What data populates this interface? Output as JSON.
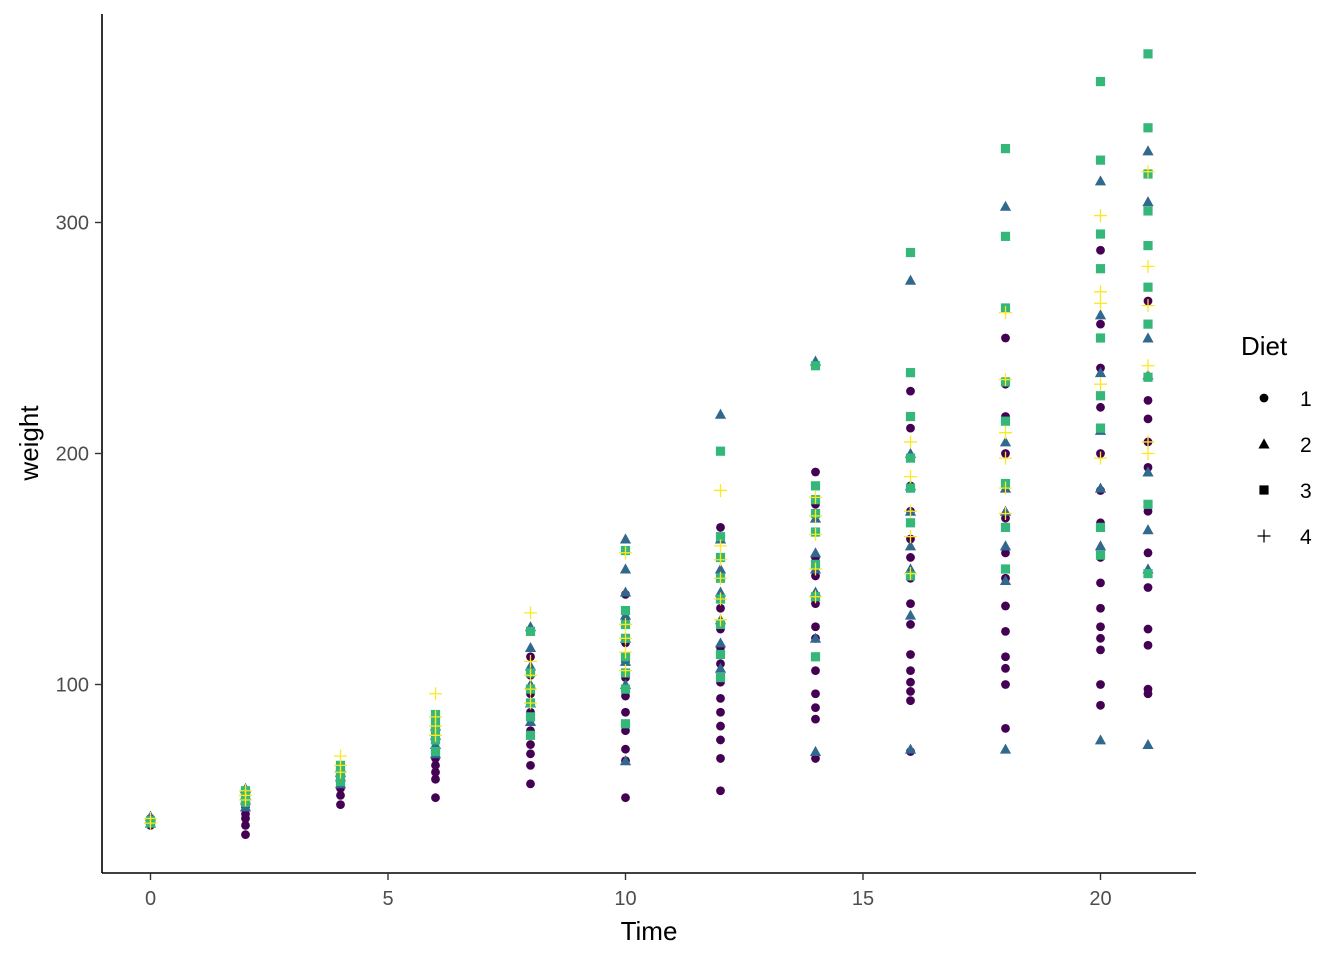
{
  "chart_data": {
    "type": "scatter",
    "title": "",
    "xlabel": "Time",
    "ylabel": "weight",
    "xlim": [
      -2,
      22
    ],
    "ylim": [
      20,
      375
    ],
    "xticks": [
      0,
      5,
      10,
      15,
      20
    ],
    "yticks": [
      100,
      200,
      300
    ],
    "grid": false,
    "legend": {
      "title": "Diet",
      "position": "right",
      "entries": [
        "1",
        "2",
        "3",
        "4"
      ]
    },
    "colors": [
      "#440154",
      "#31688E",
      "#35B779",
      "#FDE725"
    ],
    "shapes": [
      "circle",
      "triangle",
      "square",
      "plus"
    ],
    "series": [
      {
        "name": "1",
        "points": [
          [
            0,
            39
          ],
          [
            0,
            41
          ],
          [
            0,
            42
          ],
          [
            2,
            35
          ],
          [
            2,
            39
          ],
          [
            2,
            42
          ],
          [
            2,
            44
          ],
          [
            2,
            47
          ],
          [
            2,
            49
          ],
          [
            2,
            51
          ],
          [
            4,
            48
          ],
          [
            4,
            52
          ],
          [
            4,
            55
          ],
          [
            4,
            58
          ],
          [
            4,
            61
          ],
          [
            6,
            51
          ],
          [
            6,
            59
          ],
          [
            6,
            62
          ],
          [
            6,
            65
          ],
          [
            6,
            68
          ],
          [
            6,
            72
          ],
          [
            8,
            57
          ],
          [
            8,
            65
          ],
          [
            8,
            70
          ],
          [
            8,
            74
          ],
          [
            8,
            80
          ],
          [
            8,
            88
          ],
          [
            8,
            96
          ],
          [
            8,
            104
          ],
          [
            8,
            112
          ],
          [
            10,
            51
          ],
          [
            10,
            67
          ],
          [
            10,
            72
          ],
          [
            10,
            80
          ],
          [
            10,
            88
          ],
          [
            10,
            95
          ],
          [
            10,
            103
          ],
          [
            10,
            110
          ],
          [
            10,
            118
          ],
          [
            10,
            127
          ],
          [
            10,
            139
          ],
          [
            12,
            54
          ],
          [
            12,
            68
          ],
          [
            12,
            76
          ],
          [
            12,
            82
          ],
          [
            12,
            88
          ],
          [
            12,
            94
          ],
          [
            12,
            101
          ],
          [
            12,
            109
          ],
          [
            12,
            116
          ],
          [
            12,
            124
          ],
          [
            12,
            133
          ],
          [
            12,
            146
          ],
          [
            12,
            168
          ],
          [
            14,
            68
          ],
          [
            14,
            85
          ],
          [
            14,
            90
          ],
          [
            14,
            96
          ],
          [
            14,
            106
          ],
          [
            14,
            112
          ],
          [
            14,
            120
          ],
          [
            14,
            125
          ],
          [
            14,
            135
          ],
          [
            14,
            147
          ],
          [
            14,
            155
          ],
          [
            14,
            166
          ],
          [
            14,
            178
          ],
          [
            14,
            192
          ],
          [
            16,
            71
          ],
          [
            16,
            93
          ],
          [
            16,
            97
          ],
          [
            16,
            101
          ],
          [
            16,
            106
          ],
          [
            16,
            113
          ],
          [
            16,
            126
          ],
          [
            16,
            135
          ],
          [
            16,
            146
          ],
          [
            16,
            155
          ],
          [
            16,
            163
          ],
          [
            16,
            175
          ],
          [
            16,
            186
          ],
          [
            16,
            198
          ],
          [
            16,
            211
          ],
          [
            16,
            227
          ],
          [
            18,
            81
          ],
          [
            18,
            100
          ],
          [
            18,
            107
          ],
          [
            18,
            112
          ],
          [
            18,
            123
          ],
          [
            18,
            134
          ],
          [
            18,
            146
          ],
          [
            18,
            157
          ],
          [
            18,
            172
          ],
          [
            18,
            186
          ],
          [
            18,
            200
          ],
          [
            18,
            216
          ],
          [
            18,
            230
          ],
          [
            18,
            250
          ],
          [
            20,
            91
          ],
          [
            20,
            100
          ],
          [
            20,
            115
          ],
          [
            20,
            120
          ],
          [
            20,
            125
          ],
          [
            20,
            133
          ],
          [
            20,
            144
          ],
          [
            20,
            155
          ],
          [
            20,
            170
          ],
          [
            20,
            184
          ],
          [
            20,
            200
          ],
          [
            20,
            220
          ],
          [
            20,
            237
          ],
          [
            20,
            256
          ],
          [
            20,
            288
          ],
          [
            21,
            96
          ],
          [
            21,
            98
          ],
          [
            21,
            117
          ],
          [
            21,
            124
          ],
          [
            21,
            142
          ],
          [
            21,
            148
          ],
          [
            21,
            157
          ],
          [
            21,
            175
          ],
          [
            21,
            194
          ],
          [
            21,
            205
          ],
          [
            21,
            215
          ],
          [
            21,
            223
          ],
          [
            21,
            256
          ],
          [
            21,
            266
          ],
          [
            21,
            305
          ]
        ]
      },
      {
        "name": "2",
        "points": [
          [
            0,
            40
          ],
          [
            0,
            42
          ],
          [
            0,
            43
          ],
          [
            2,
            47
          ],
          [
            2,
            50
          ],
          [
            2,
            52
          ],
          [
            2,
            55
          ],
          [
            4,
            57
          ],
          [
            4,
            60
          ],
          [
            4,
            62
          ],
          [
            4,
            64
          ],
          [
            6,
            70
          ],
          [
            6,
            74
          ],
          [
            6,
            78
          ],
          [
            6,
            82
          ],
          [
            8,
            84
          ],
          [
            8,
            92
          ],
          [
            8,
            100
          ],
          [
            8,
            108
          ],
          [
            8,
            116
          ],
          [
            8,
            125
          ],
          [
            10,
            67
          ],
          [
            10,
            100
          ],
          [
            10,
            110
          ],
          [
            10,
            120
          ],
          [
            10,
            130
          ],
          [
            10,
            140
          ],
          [
            10,
            150
          ],
          [
            10,
            163
          ],
          [
            12,
            107
          ],
          [
            12,
            118
          ],
          [
            12,
            128
          ],
          [
            12,
            140
          ],
          [
            12,
            150
          ],
          [
            12,
            163
          ],
          [
            12,
            217
          ],
          [
            14,
            71
          ],
          [
            14,
            120
          ],
          [
            14,
            140
          ],
          [
            14,
            150
          ],
          [
            14,
            157
          ],
          [
            14,
            172
          ],
          [
            14,
            240
          ],
          [
            16,
            72
          ],
          [
            16,
            130
          ],
          [
            16,
            150
          ],
          [
            16,
            160
          ],
          [
            16,
            175
          ],
          [
            16,
            186
          ],
          [
            16,
            200
          ],
          [
            16,
            275
          ],
          [
            18,
            72
          ],
          [
            18,
            145
          ],
          [
            18,
            160
          ],
          [
            18,
            175
          ],
          [
            18,
            185
          ],
          [
            18,
            205
          ],
          [
            18,
            307
          ],
          [
            20,
            76
          ],
          [
            20,
            160
          ],
          [
            20,
            185
          ],
          [
            20,
            210
          ],
          [
            20,
            235
          ],
          [
            20,
            260
          ],
          [
            20,
            318
          ],
          [
            21,
            74
          ],
          [
            21,
            150
          ],
          [
            21,
            167
          ],
          [
            21,
            192
          ],
          [
            21,
            234
          ],
          [
            21,
            250
          ],
          [
            21,
            309
          ],
          [
            21,
            331
          ]
        ]
      },
      {
        "name": "3",
        "points": [
          [
            0,
            40
          ],
          [
            0,
            41
          ],
          [
            2,
            49
          ],
          [
            2,
            51
          ],
          [
            2,
            53
          ],
          [
            2,
            54
          ],
          [
            4,
            58
          ],
          [
            4,
            61
          ],
          [
            4,
            63
          ],
          [
            4,
            65
          ],
          [
            6,
            71
          ],
          [
            6,
            76
          ],
          [
            6,
            80
          ],
          [
            6,
            84
          ],
          [
            6,
            87
          ],
          [
            8,
            78
          ],
          [
            8,
            86
          ],
          [
            8,
            92
          ],
          [
            8,
            98
          ],
          [
            8,
            105
          ],
          [
            8,
            123
          ],
          [
            10,
            83
          ],
          [
            10,
            98
          ],
          [
            10,
            105
          ],
          [
            10,
            112
          ],
          [
            10,
            120
          ],
          [
            10,
            126
          ],
          [
            10,
            132
          ],
          [
            10,
            158
          ],
          [
            12,
            103
          ],
          [
            12,
            113
          ],
          [
            12,
            126
          ],
          [
            12,
            137
          ],
          [
            12,
            146
          ],
          [
            12,
            155
          ],
          [
            12,
            164
          ],
          [
            12,
            201
          ],
          [
            14,
            112
          ],
          [
            14,
            138
          ],
          [
            14,
            152
          ],
          [
            14,
            166
          ],
          [
            14,
            174
          ],
          [
            14,
            180
          ],
          [
            14,
            186
          ],
          [
            14,
            238
          ],
          [
            16,
            147
          ],
          [
            16,
            170
          ],
          [
            16,
            185
          ],
          [
            16,
            198
          ],
          [
            16,
            216
          ],
          [
            16,
            235
          ],
          [
            16,
            287
          ],
          [
            18,
            150
          ],
          [
            18,
            168
          ],
          [
            18,
            187
          ],
          [
            18,
            214
          ],
          [
            18,
            231
          ],
          [
            18,
            263
          ],
          [
            18,
            294
          ],
          [
            18,
            332
          ],
          [
            20,
            156
          ],
          [
            20,
            168
          ],
          [
            20,
            211
          ],
          [
            20,
            225
          ],
          [
            20,
            250
          ],
          [
            20,
            280
          ],
          [
            20,
            295
          ],
          [
            20,
            327
          ],
          [
            20,
            361
          ],
          [
            21,
            148
          ],
          [
            21,
            178
          ],
          [
            21,
            233
          ],
          [
            21,
            256
          ],
          [
            21,
            272
          ],
          [
            21,
            290
          ],
          [
            21,
            305
          ],
          [
            21,
            321
          ],
          [
            21,
            341
          ],
          [
            21,
            373
          ]
        ]
      },
      {
        "name": "4",
        "points": [
          [
            0,
            40
          ],
          [
            0,
            42
          ],
          [
            2,
            50
          ],
          [
            2,
            52
          ],
          [
            2,
            54
          ],
          [
            4,
            62
          ],
          [
            4,
            65
          ],
          [
            4,
            69
          ],
          [
            6,
            78
          ],
          [
            6,
            82
          ],
          [
            6,
            86
          ],
          [
            6,
            96
          ],
          [
            8,
            92
          ],
          [
            8,
            98
          ],
          [
            8,
            104
          ],
          [
            8,
            110
          ],
          [
            8,
            131
          ],
          [
            10,
            106
          ],
          [
            10,
            114
          ],
          [
            10,
            120
          ],
          [
            10,
            126
          ],
          [
            10,
            157
          ],
          [
            12,
            128
          ],
          [
            12,
            137
          ],
          [
            12,
            146
          ],
          [
            12,
            154
          ],
          [
            12,
            160
          ],
          [
            12,
            184
          ],
          [
            14,
            138
          ],
          [
            14,
            150
          ],
          [
            14,
            165
          ],
          [
            14,
            173
          ],
          [
            14,
            181
          ],
          [
            16,
            148
          ],
          [
            16,
            164
          ],
          [
            16,
            175
          ],
          [
            16,
            190
          ],
          [
            16,
            205
          ],
          [
            18,
            174
          ],
          [
            18,
            185
          ],
          [
            18,
            198
          ],
          [
            18,
            209
          ],
          [
            18,
            232
          ],
          [
            18,
            261
          ],
          [
            20,
            198
          ],
          [
            20,
            230
          ],
          [
            20,
            265
          ],
          [
            20,
            270
          ],
          [
            20,
            303
          ],
          [
            21,
            200
          ],
          [
            21,
            205
          ],
          [
            21,
            238
          ],
          [
            21,
            264
          ],
          [
            21,
            281
          ],
          [
            21,
            322
          ]
        ]
      }
    ]
  }
}
